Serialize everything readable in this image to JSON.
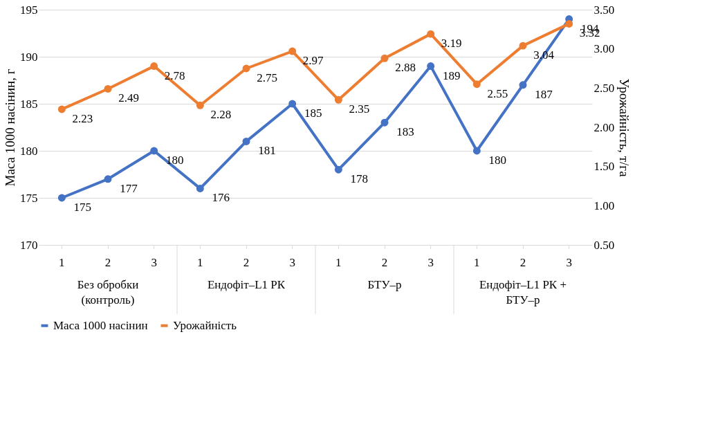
{
  "chart_data": {
    "type": "line",
    "categories": [
      "1",
      "2",
      "3",
      "1",
      "2",
      "3",
      "1",
      "2",
      "3",
      "1",
      "2",
      "3"
    ],
    "annotations": [
      "Без обробки\n(контроль)",
      "Ендофіт–L1 РК",
      "БТУ–р",
      "Ендофіт–L1 РК +\nБТУ–р"
    ],
    "ylabel": "Маса 1000 насінин, г",
    "y2label": "Урожайність, т/га",
    "series": [
      {
        "name": "Маса 1000 насінин",
        "color": "#4472c4",
        "values": [
          175,
          177,
          180,
          176,
          181,
          185,
          178,
          183,
          189,
          180,
          187,
          194
        ]
      },
      {
        "name": "Урожайність",
        "color": "#ed7d31",
        "axis": "y2",
        "values": [
          2.23,
          2.49,
          2.78,
          2.28,
          2.75,
          2.97,
          2.35,
          2.88,
          3.19,
          2.55,
          3.04,
          3.32
        ]
      }
    ],
    "ylim": [
      170,
      195
    ],
    "yticks": [
      170,
      175,
      180,
      185,
      190,
      195
    ],
    "y2lim": [
      0.5,
      3.5
    ],
    "y2ticks": [
      {
        "value": 0.5,
        "label": "0.50"
      },
      {
        "value": 1.0,
        "label": "1.00"
      },
      {
        "value": 1.5,
        "label": "1.50"
      },
      {
        "value": 2.0,
        "label": "2.00"
      },
      {
        "value": 2.5,
        "label": "2.50"
      },
      {
        "value": 3.0,
        "label": "3.00"
      },
      {
        "value": 3.5,
        "label": "3.50"
      }
    ],
    "grid": "y",
    "legend": "bottom",
    "marker": "circle",
    "line_style": "solid",
    "data_labels": true
  }
}
